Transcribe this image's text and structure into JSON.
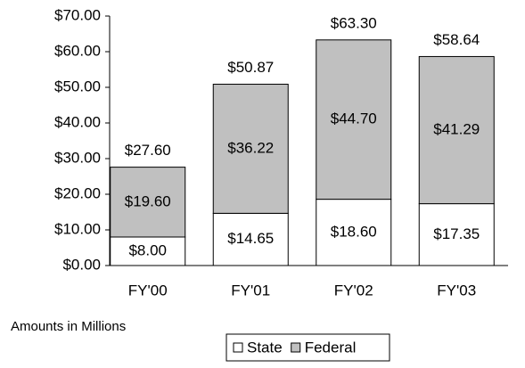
{
  "chart_data": {
    "type": "stacked_bar",
    "categories": [
      "FY'00",
      "FY'01",
      "FY'02",
      "FY'03"
    ],
    "series": [
      {
        "name": "State",
        "color": "#ffffff",
        "values": [
          8.0,
          14.65,
          18.6,
          17.35
        ],
        "value_labels": [
          "$8.00",
          "$14.65",
          "$18.60",
          "$17.35"
        ]
      },
      {
        "name": "Federal",
        "color": "#c0c0c0",
        "values": [
          19.6,
          36.22,
          44.7,
          41.29
        ],
        "value_labels": [
          "$19.60",
          "$36.22",
          "$44.70",
          "$41.29"
        ]
      }
    ],
    "totals": [
      27.6,
      50.87,
      63.3,
      58.64
    ],
    "total_labels": [
      "$27.60",
      "$50.87",
      "$63.30",
      "$58.64"
    ],
    "ylim": [
      0,
      70
    ],
    "yticks": [
      {
        "value": 0,
        "label": "$0.00"
      },
      {
        "value": 10,
        "label": "$10.00"
      },
      {
        "value": 20,
        "label": "$20.00"
      },
      {
        "value": 30,
        "label": "$30.00"
      },
      {
        "value": 40,
        "label": "$40.00"
      },
      {
        "value": 50,
        "label": "$50.00"
      },
      {
        "value": 60,
        "label": "$60.00"
      },
      {
        "value": 70,
        "label": "$70.00"
      }
    ],
    "annotation": "Amounts in Millions",
    "legend": "bottom"
  }
}
